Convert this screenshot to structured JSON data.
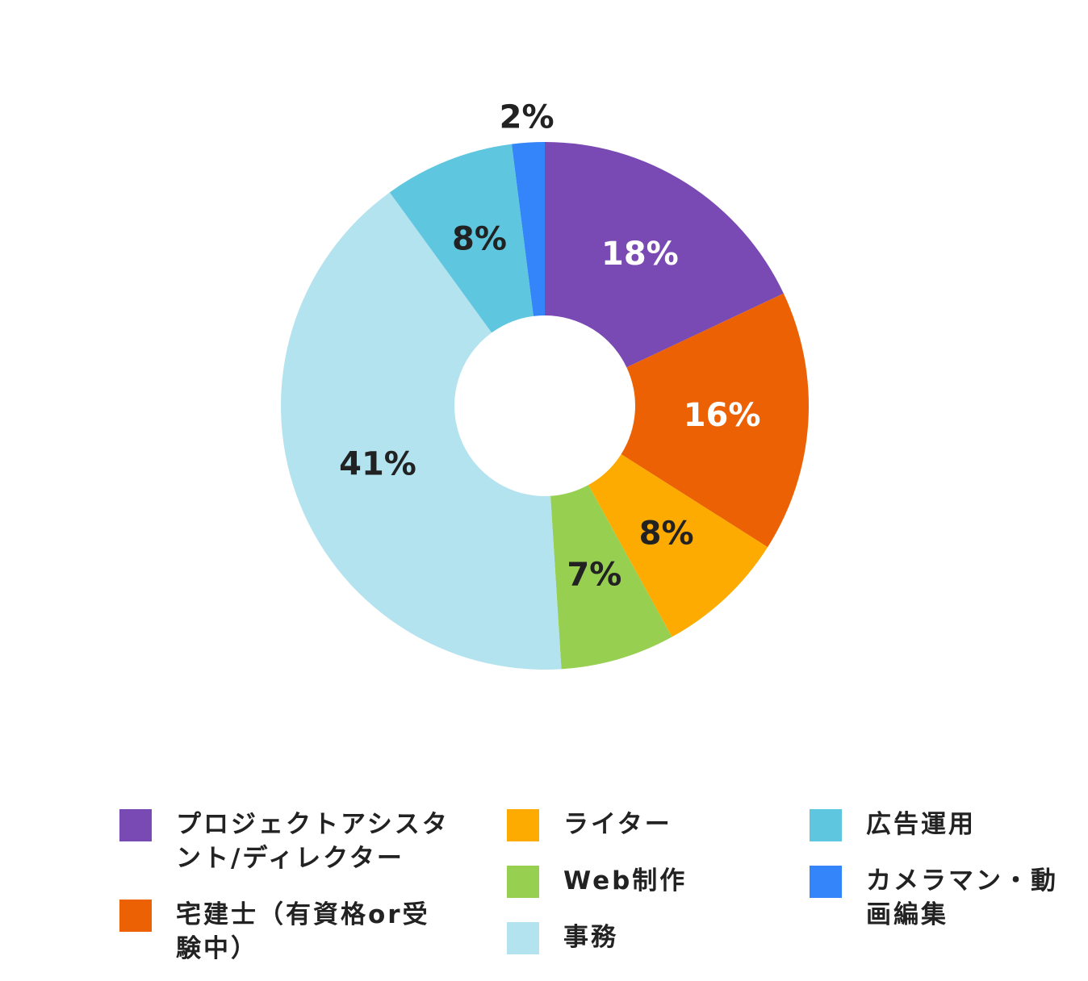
{
  "chart_data": {
    "type": "donut",
    "categories": [
      "プロジェクトアシスタント/ディレクター",
      "宅建士（有資格or受験中）",
      "ライター",
      "Web制作",
      "事務",
      "広告運用",
      "カメラマン・動画編集"
    ],
    "values": [
      18,
      16,
      8,
      7,
      41,
      8,
      2
    ],
    "value_labels": [
      "18%",
      "16%",
      "8%",
      "7%",
      "41%",
      "8%",
      "2%"
    ],
    "colors": [
      "#7a4ab4",
      "#ec6103",
      "#fdab00",
      "#97cf51",
      "#b3e3ee",
      "#5ec7df",
      "#3385f9"
    ],
    "label_colors": [
      "#ffffff",
      "#ffffff",
      "#222222",
      "#222222",
      "#222222",
      "#222222",
      "#222222"
    ],
    "legend_columns": [
      [
        0,
        1
      ],
      [
        2,
        3,
        4
      ],
      [
        5,
        6
      ]
    ]
  }
}
